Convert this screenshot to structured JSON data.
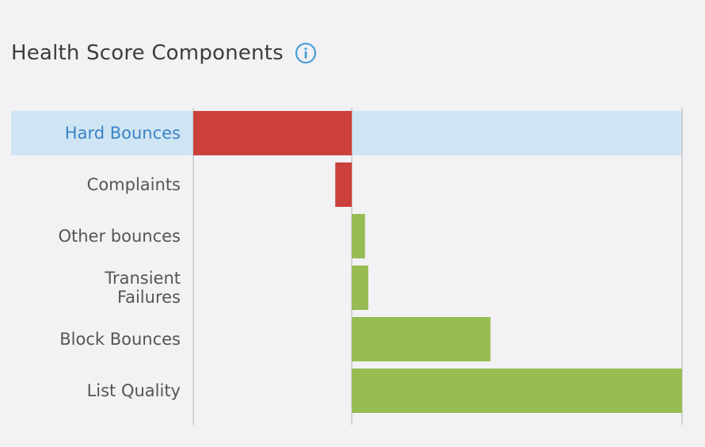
{
  "header": {
    "title": "Health Score Components",
    "info_icon": "info-circle-icon"
  },
  "colors": {
    "negative": "#cb403a",
    "positive": "#97bc52",
    "highlight_row": "#d0e5f3",
    "highlight_text": "#3c82c6",
    "label_text": "#555555",
    "axis": "#c8c8c8"
  },
  "chart_data": {
    "type": "bar",
    "orientation": "horizontal",
    "categories": [
      "Hard Bounces",
      "Complaints",
      "Other bounces",
      "Transient Failures",
      "Block Bounces",
      "List Quality"
    ],
    "category_lines": [
      [
        "Hard Bounces"
      ],
      [
        "Complaints"
      ],
      [
        "Other bounces"
      ],
      [
        "Transient",
        "Failures"
      ],
      [
        "Block Bounces"
      ],
      [
        "List Quality"
      ]
    ],
    "values": [
      -48,
      -5,
      4,
      5,
      42,
      100
    ],
    "xlim": [
      -48,
      100
    ],
    "highlighted_category": "Hard Bounces",
    "grid": false,
    "legend": "none"
  }
}
